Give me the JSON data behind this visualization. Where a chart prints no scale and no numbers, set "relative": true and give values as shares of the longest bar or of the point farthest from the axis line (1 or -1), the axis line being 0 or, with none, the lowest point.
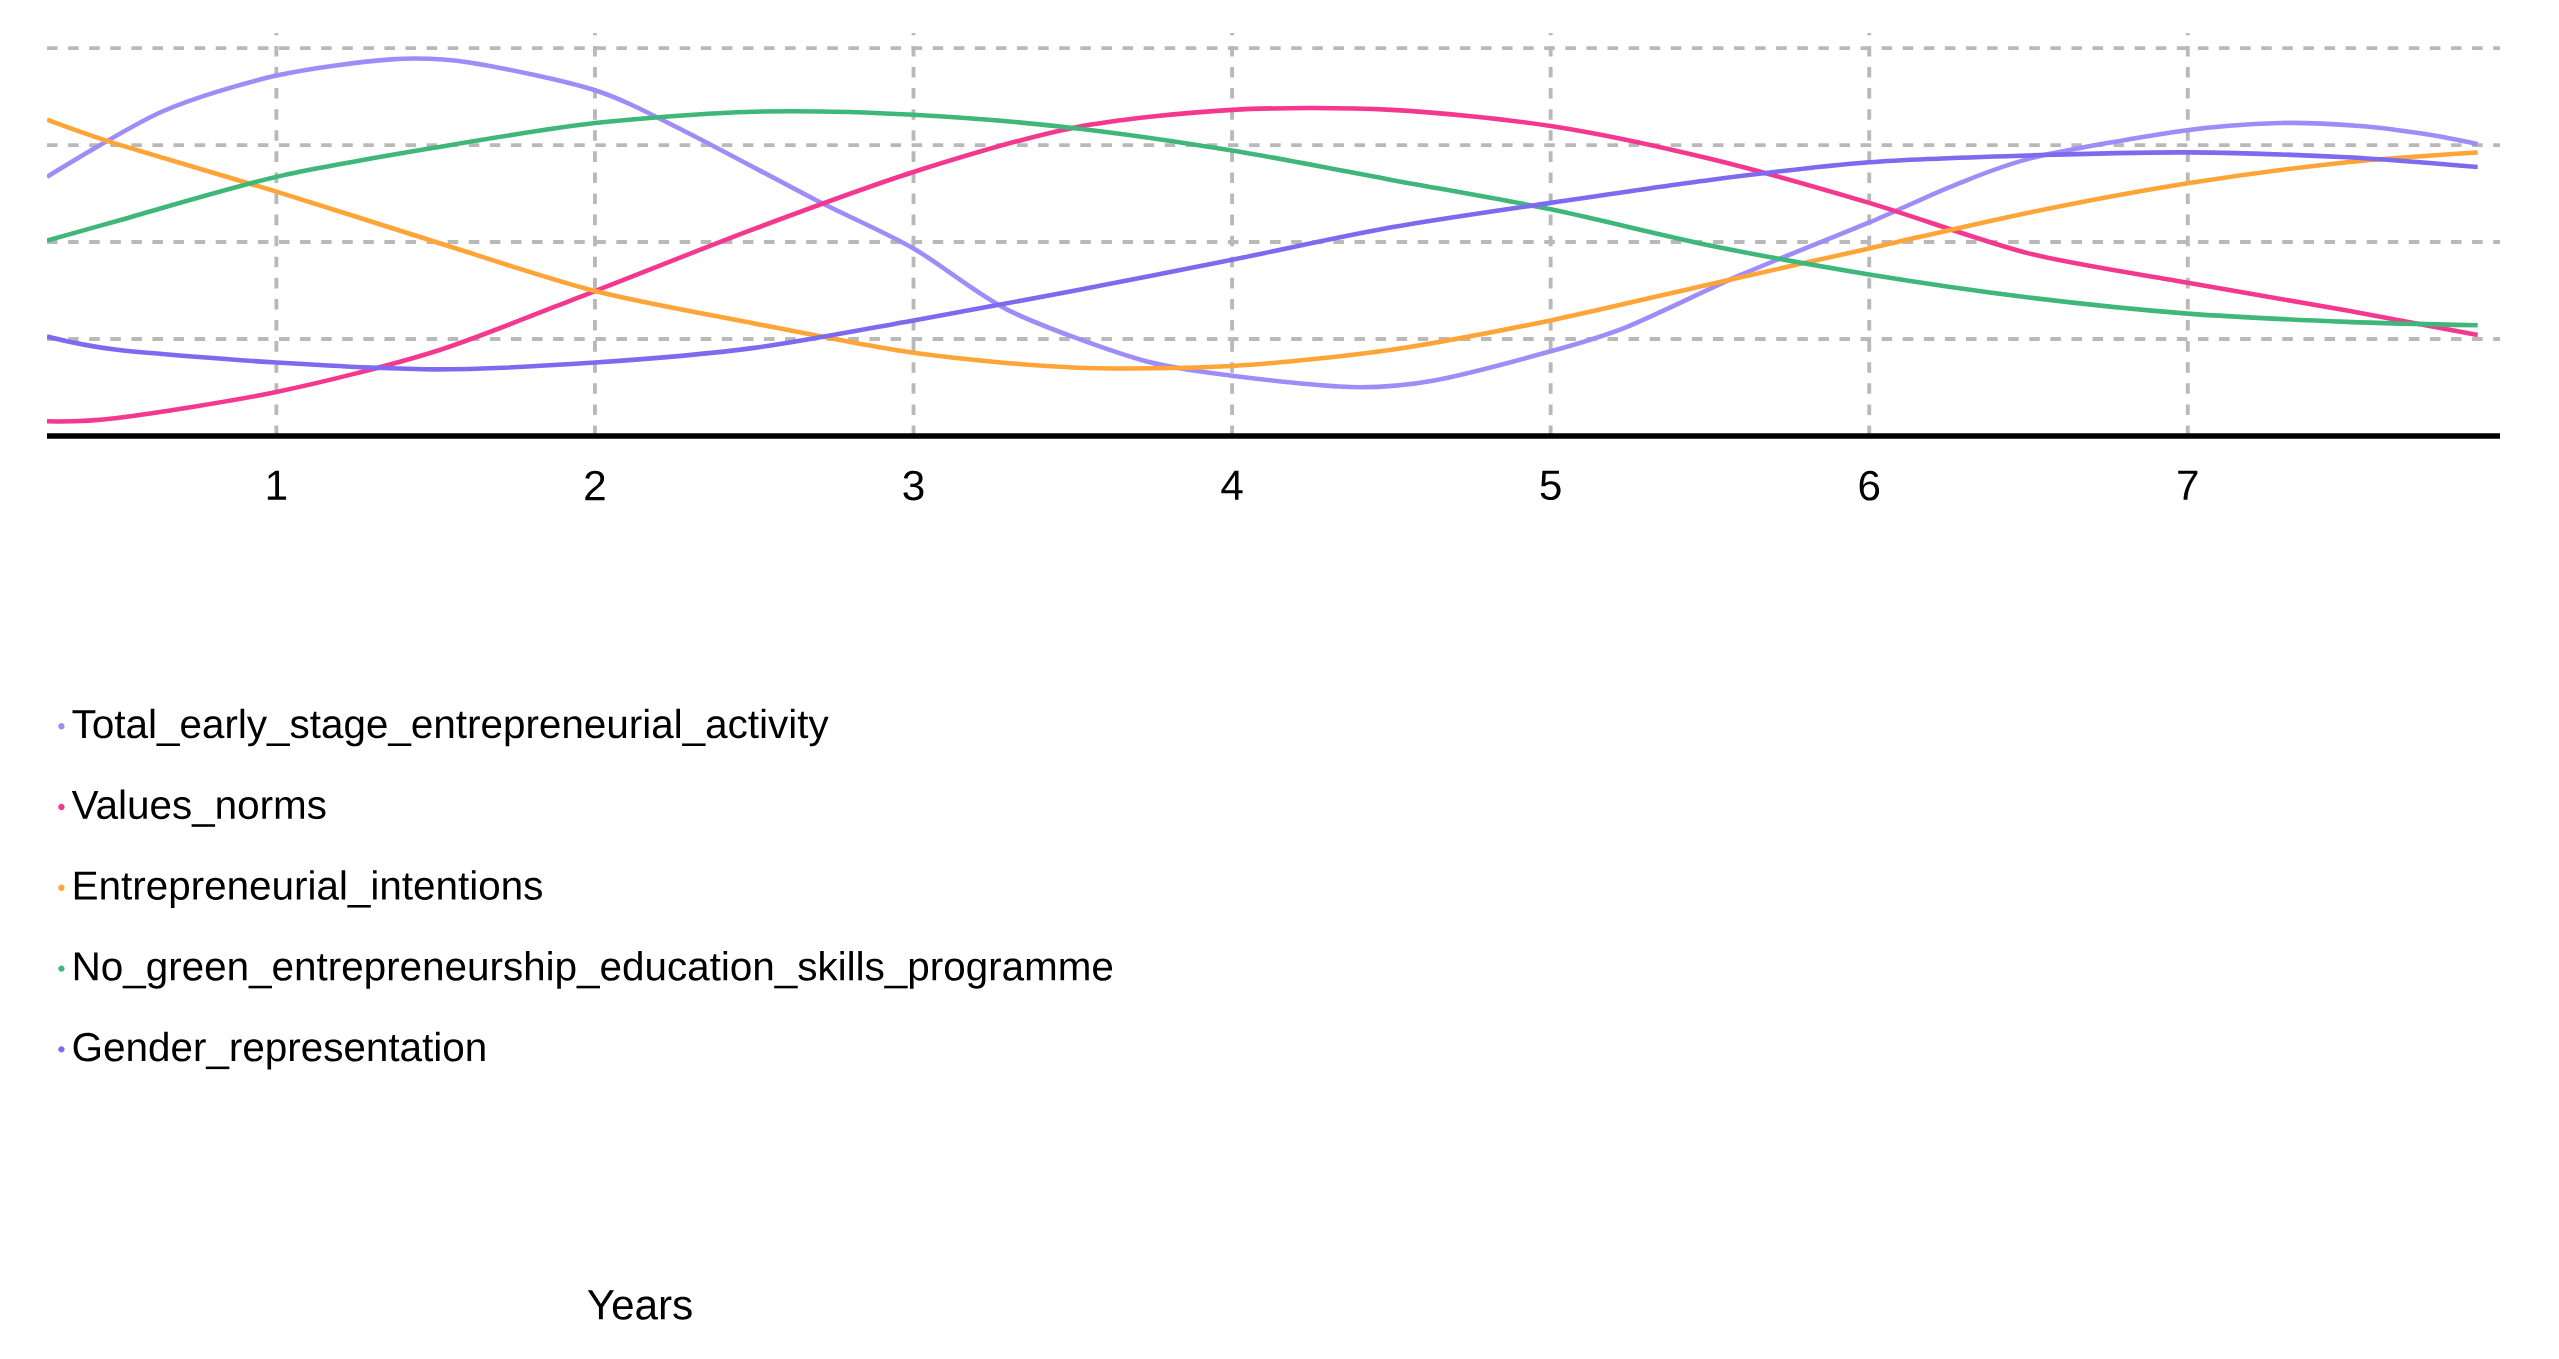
{
  "chart_data": {
    "type": "line",
    "relative": true,
    "annotations": [
      "Years"
    ],
    "grid": true,
    "legend": "bottom",
    "marker": "none",
    "xlim": [
      0.28,
      7.98
    ],
    "xticks": [
      1,
      2,
      3,
      4,
      5,
      6,
      7
    ],
    "x": [
      0.28,
      0.5,
      1,
      1.5,
      2,
      2.5,
      3,
      3.5,
      4,
      4.5,
      5,
      5.5,
      6,
      6.5,
      7,
      7.5,
      7.91
    ],
    "series": [
      {
        "name": "Total_early_stage_entrepreneurial_activity",
        "color": "#a08cf8",
        "x": [
          0.28,
          0.64,
          1,
          1.36,
          1.61,
          2,
          2.28,
          2.69,
          3,
          3.3,
          3.71,
          4,
          4.37,
          4.63,
          5,
          5.24,
          5.6,
          6,
          6.27,
          6.52,
          6.98,
          7.29,
          7.54,
          7.75,
          7.91
        ],
        "values": [
          0.688,
          0.861,
          0.957,
          1.0,
          0.991,
          0.918,
          0.81,
          0.628,
          0.498,
          0.333,
          0.203,
          0.16,
          0.13,
          0.147,
          0.225,
          0.29,
          0.429,
          0.567,
          0.667,
          0.74,
          0.81,
          0.831,
          0.823,
          0.801,
          0.775
        ]
      },
      {
        "name": "Values_norms",
        "color": "#f5388f",
        "values": [
          0.039,
          0.048,
          0.117,
          0.225,
          0.385,
          0.55,
          0.701,
          0.818,
          0.866,
          0.866,
          0.823,
          0.736,
          0.619,
          0.485,
          0.407,
          0.333,
          0.268
        ]
      },
      {
        "name": "Entrepreneurial_intentions",
        "color": "#ffa537",
        "values": [
          0.84,
          0.775,
          0.649,
          0.515,
          0.385,
          0.299,
          0.221,
          0.182,
          0.186,
          0.229,
          0.307,
          0.403,
          0.498,
          0.593,
          0.671,
          0.727,
          0.753
        ]
      },
      {
        "name": "No_green_entrepreneurship_education_skills_programme",
        "color": "#40b77a",
        "values": [
          0.519,
          0.571,
          0.688,
          0.766,
          0.831,
          0.861,
          0.853,
          0.818,
          0.758,
          0.68,
          0.602,
          0.506,
          0.429,
          0.368,
          0.325,
          0.303,
          0.294
        ]
      },
      {
        "name": "Gender_representation",
        "color": "#7d6bef",
        "values": [
          0.264,
          0.229,
          0.195,
          0.177,
          0.195,
          0.234,
          0.307,
          0.385,
          0.468,
          0.554,
          0.619,
          0.68,
          0.727,
          0.745,
          0.753,
          0.74,
          0.714
        ]
      }
    ]
  }
}
